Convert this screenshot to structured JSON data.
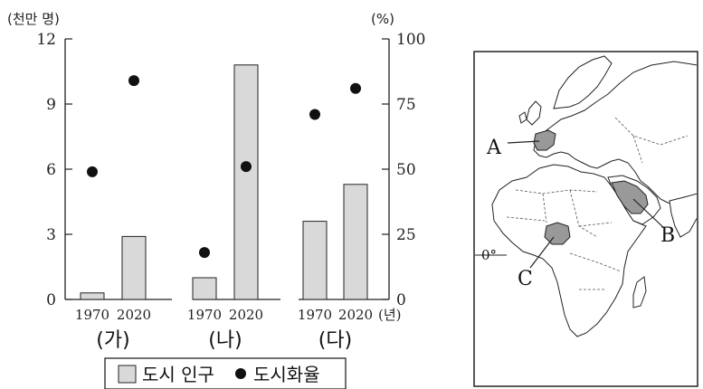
{
  "chart_data": {
    "type": "bar",
    "groups": [
      "(가)",
      "(나)",
      "(다)"
    ],
    "years": [
      "1970",
      "2020"
    ],
    "year_unit": "(년)",
    "left_axis": {
      "unit": "(천만 명)",
      "ylim": [
        0,
        12
      ],
      "ticks": [
        "0",
        "3",
        "6",
        "9",
        "12"
      ]
    },
    "right_axis": {
      "unit": "(%)",
      "ylim": [
        0,
        100
      ],
      "ticks": [
        "0",
        "25",
        "50",
        "75",
        "100"
      ]
    },
    "series": [
      {
        "name": "도시 인구",
        "kind": "bar",
        "axis": "left",
        "values": [
          0.3,
          2.9,
          1.0,
          10.8,
          3.6,
          5.3
        ]
      },
      {
        "name": "도시화율",
        "kind": "scatter",
        "axis": "right",
        "values": [
          49,
          84,
          18,
          51,
          71,
          81
        ]
      }
    ],
    "legend": {
      "position": "bottom",
      "bar_label": "도시 인구",
      "dot_label": "도시화율"
    }
  },
  "map": {
    "labels": {
      "a": "A",
      "b": "B",
      "c": "C"
    },
    "equator_label": "0°",
    "colors": {
      "highlight": "#999999",
      "land": "#ffffff",
      "outline": "#222222"
    }
  }
}
